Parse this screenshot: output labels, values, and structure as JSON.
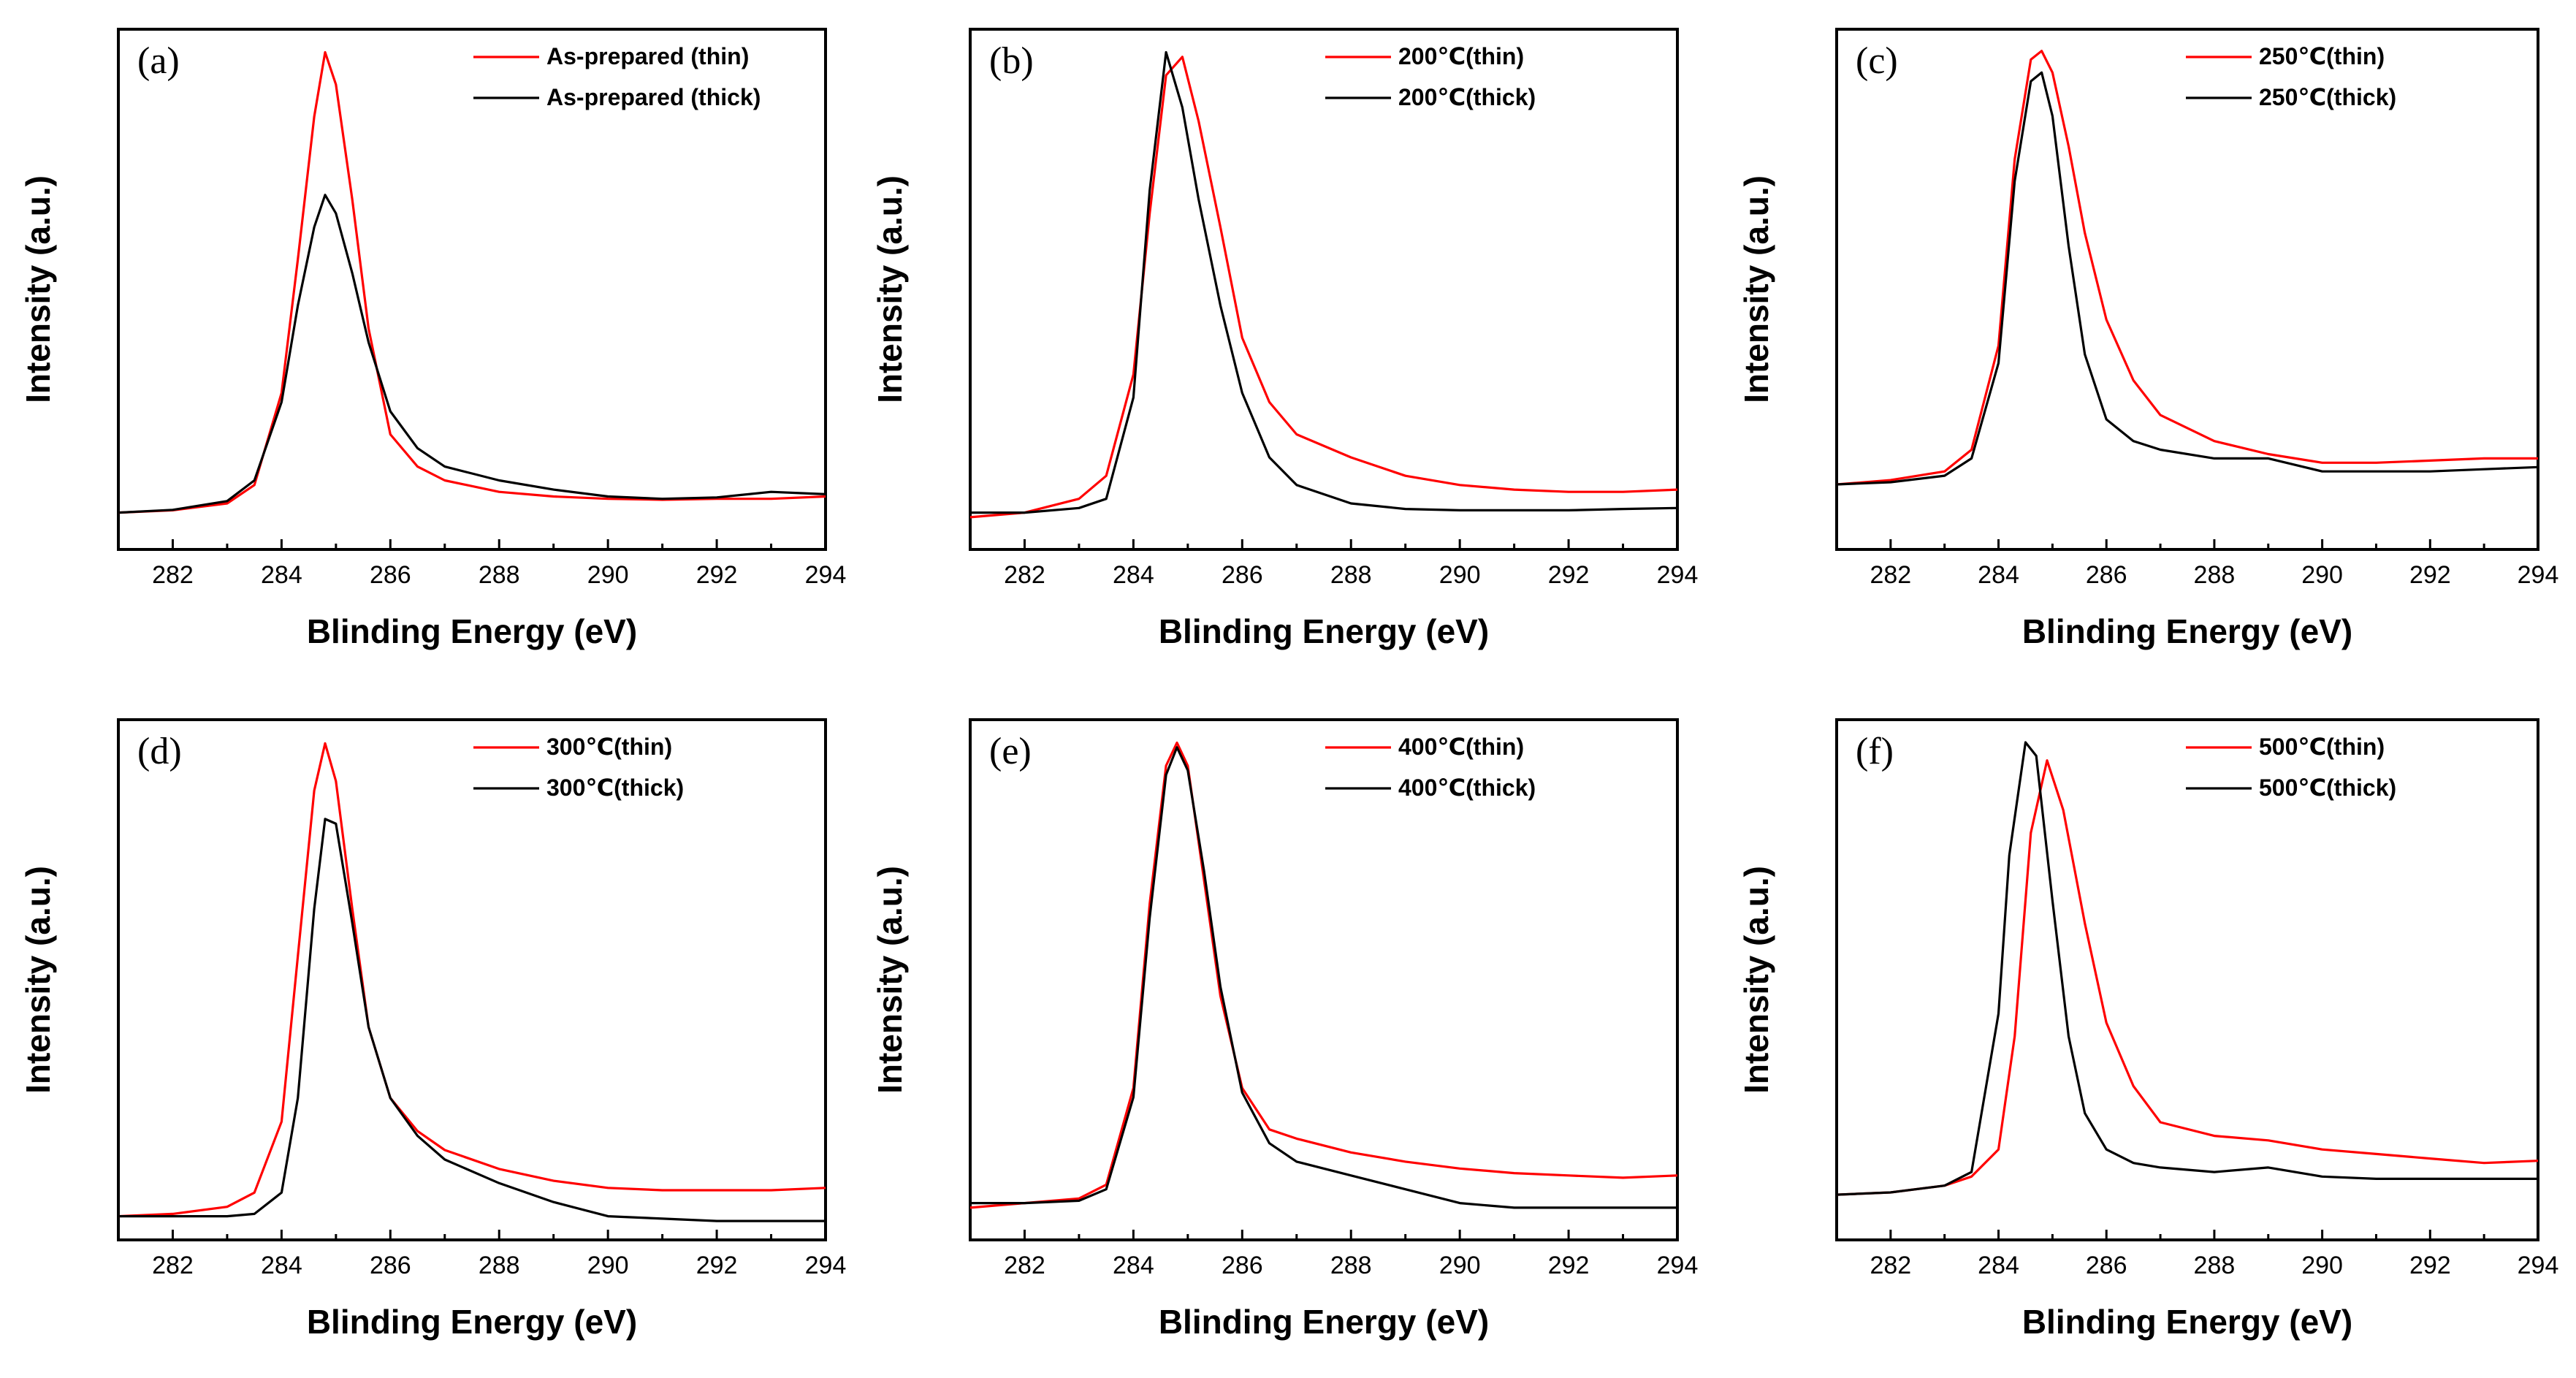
{
  "figure": {
    "panels_count": 6,
    "series_colors": {
      "thin": "#ff0000",
      "thick": "#000000"
    }
  },
  "chart_data": [
    {
      "type": "line",
      "panel_label": "(a)",
      "xlabel": "Blinding Energy (eV)",
      "ylabel": "Intensity (a.u.)",
      "xlim": [
        281,
        294
      ],
      "ylim": [
        -0.08,
        1.05
      ],
      "x_ticks": [
        "282",
        "284",
        "286",
        "288",
        "290",
        "292",
        "294"
      ],
      "legend_position": "top-right",
      "series": [
        {
          "name": "As-prepared (thin)",
          "color": "#ff0000",
          "x": [
            281,
            282,
            283,
            283.5,
            284,
            284.3,
            284.6,
            284.8,
            285,
            285.3,
            285.6,
            286,
            286.5,
            287,
            288,
            289,
            290,
            291,
            292,
            293,
            294
          ],
          "y": [
            0.0,
            0.005,
            0.02,
            0.06,
            0.26,
            0.55,
            0.86,
            1.0,
            0.93,
            0.68,
            0.4,
            0.17,
            0.1,
            0.07,
            0.045,
            0.035,
            0.03,
            0.028,
            0.03,
            0.03,
            0.035
          ]
        },
        {
          "name": "As-prepared (thick)",
          "color": "#000000",
          "x": [
            281,
            282,
            283,
            283.5,
            284,
            284.3,
            284.6,
            284.8,
            285,
            285.3,
            285.6,
            286,
            286.5,
            287,
            287.5,
            288,
            289,
            290,
            291,
            292,
            293,
            294
          ],
          "y": [
            0.0,
            0.006,
            0.025,
            0.07,
            0.24,
            0.45,
            0.62,
            0.69,
            0.65,
            0.52,
            0.37,
            0.22,
            0.14,
            0.1,
            0.085,
            0.07,
            0.05,
            0.035,
            0.03,
            0.033,
            0.045,
            0.04
          ]
        }
      ]
    },
    {
      "type": "line",
      "panel_label": "(b)",
      "xlabel": "Blinding Energy (eV)",
      "ylabel": "Intensity (a.u.)",
      "xlim": [
        281,
        294
      ],
      "ylim": [
        -0.08,
        1.05
      ],
      "x_ticks": [
        "282",
        "284",
        "286",
        "288",
        "290",
        "292",
        "294"
      ],
      "legend_position": "top-right",
      "series": [
        {
          "name": "200℃(thin)",
          "color": "#ff0000",
          "x": [
            281,
            282,
            283,
            283.5,
            284,
            284.3,
            284.6,
            284.9,
            285.2,
            285.6,
            286,
            286.5,
            287,
            288,
            289,
            290,
            291,
            292,
            293,
            294
          ],
          "y": [
            -0.01,
            0.0,
            0.03,
            0.08,
            0.3,
            0.65,
            0.95,
            0.99,
            0.85,
            0.62,
            0.38,
            0.24,
            0.17,
            0.12,
            0.08,
            0.06,
            0.05,
            0.045,
            0.045,
            0.05
          ]
        },
        {
          "name": "200℃(thick)",
          "color": "#000000",
          "x": [
            281,
            282,
            283,
            283.5,
            284,
            284.3,
            284.6,
            284.9,
            285.2,
            285.6,
            286,
            286.5,
            287,
            288,
            289,
            290,
            291,
            292,
            293,
            294
          ],
          "y": [
            0.0,
            0.0,
            0.01,
            0.03,
            0.25,
            0.7,
            1.0,
            0.88,
            0.68,
            0.45,
            0.26,
            0.12,
            0.06,
            0.02,
            0.008,
            0.005,
            0.005,
            0.005,
            0.008,
            0.01
          ]
        }
      ]
    },
    {
      "type": "line",
      "panel_label": "(c)",
      "xlabel": "Blinding Energy (eV)",
      "ylabel": "Intensity (a.u.)",
      "xlim": [
        281,
        294
      ],
      "ylim": [
        -0.15,
        1.05
      ],
      "x_ticks": [
        "282",
        "284",
        "286",
        "288",
        "290",
        "292",
        "294"
      ],
      "legend_position": "top-right",
      "series": [
        {
          "name": "250℃(thin)",
          "color": "#ff0000",
          "x": [
            281,
            282,
            283,
            283.5,
            284,
            284.3,
            284.6,
            284.8,
            285,
            285.3,
            285.6,
            286,
            286.5,
            287,
            288,
            289,
            290,
            291,
            292,
            293,
            294
          ],
          "y": [
            0.0,
            0.01,
            0.03,
            0.08,
            0.32,
            0.75,
            0.98,
            1.0,
            0.95,
            0.78,
            0.58,
            0.38,
            0.24,
            0.16,
            0.1,
            0.07,
            0.05,
            0.05,
            0.055,
            0.06,
            0.06
          ]
        },
        {
          "name": "250℃(thick)",
          "color": "#000000",
          "x": [
            281,
            282,
            283,
            283.5,
            284,
            284.3,
            284.6,
            284.8,
            285,
            285.3,
            285.6,
            286,
            286.5,
            287,
            288,
            289,
            290,
            291,
            292,
            293,
            294
          ],
          "y": [
            0.0,
            0.005,
            0.02,
            0.06,
            0.28,
            0.7,
            0.93,
            0.95,
            0.85,
            0.55,
            0.3,
            0.15,
            0.1,
            0.08,
            0.06,
            0.06,
            0.03,
            0.03,
            0.03,
            0.035,
            0.04
          ]
        }
      ]
    },
    {
      "type": "line",
      "panel_label": "(d)",
      "xlabel": "Blinding Energy (eV)",
      "ylabel": "Intensity (a.u.)",
      "xlim": [
        281,
        294
      ],
      "ylim": [
        -0.05,
        1.05
      ],
      "x_ticks": [
        "282",
        "284",
        "286",
        "288",
        "290",
        "292",
        "294"
      ],
      "legend_position": "top-right",
      "series": [
        {
          "name": "300℃(thin)",
          "color": "#ff0000",
          "x": [
            281,
            282,
            283,
            283.5,
            284,
            284.3,
            284.6,
            284.8,
            285,
            285.3,
            285.6,
            286,
            286.5,
            287,
            288,
            289,
            290,
            291,
            292,
            293,
            294
          ],
          "y": [
            0.0,
            0.005,
            0.02,
            0.05,
            0.2,
            0.55,
            0.9,
            1.0,
            0.92,
            0.65,
            0.4,
            0.25,
            0.18,
            0.14,
            0.1,
            0.075,
            0.06,
            0.055,
            0.055,
            0.055,
            0.06
          ]
        },
        {
          "name": "300℃(thick)",
          "color": "#000000",
          "x": [
            281,
            282,
            283,
            283.5,
            284,
            284.3,
            284.6,
            284.8,
            285,
            285.3,
            285.6,
            286,
            286.5,
            287,
            288,
            289,
            290,
            291,
            292,
            293,
            294
          ],
          "y": [
            0.0,
            0.0,
            0.0,
            0.005,
            0.05,
            0.25,
            0.65,
            0.84,
            0.83,
            0.62,
            0.4,
            0.25,
            0.17,
            0.12,
            0.07,
            0.03,
            0.0,
            -0.005,
            -0.01,
            -0.01,
            -0.01
          ]
        }
      ]
    },
    {
      "type": "line",
      "panel_label": "(e)",
      "xlabel": "Blinding Energy (eV)",
      "ylabel": "Intensity (a.u.)",
      "xlim": [
        281,
        294
      ],
      "ylim": [
        -0.08,
        1.05
      ],
      "x_ticks": [
        "282",
        "284",
        "286",
        "288",
        "290",
        "292",
        "294"
      ],
      "legend_position": "top-right",
      "series": [
        {
          "name": "400℃(thin)",
          "color": "#ff0000",
          "x": [
            281,
            282,
            283,
            283.5,
            284,
            284.3,
            284.6,
            284.8,
            285,
            285.3,
            285.6,
            286,
            286.5,
            287,
            288,
            289,
            290,
            291,
            292,
            293,
            294
          ],
          "y": [
            -0.01,
            0.0,
            0.01,
            0.04,
            0.25,
            0.65,
            0.95,
            1.0,
            0.95,
            0.7,
            0.45,
            0.25,
            0.16,
            0.14,
            0.11,
            0.09,
            0.075,
            0.065,
            0.06,
            0.055,
            0.06
          ]
        },
        {
          "name": "400℃(thick)",
          "color": "#000000",
          "x": [
            281,
            282,
            283,
            283.5,
            284,
            284.3,
            284.6,
            284.8,
            285,
            285.3,
            285.6,
            286,
            286.5,
            287,
            288,
            289,
            290,
            291,
            292,
            293,
            294
          ],
          "y": [
            0.0,
            0.0,
            0.005,
            0.03,
            0.23,
            0.62,
            0.93,
            0.99,
            0.94,
            0.72,
            0.47,
            0.24,
            0.13,
            0.09,
            0.06,
            0.03,
            0.0,
            -0.01,
            -0.01,
            -0.01,
            -0.01
          ]
        }
      ]
    },
    {
      "type": "line",
      "panel_label": "(f)",
      "xlabel": "Blinding Energy (eV)",
      "ylabel": "Intensity (a.u.)",
      "xlim": [
        281,
        294
      ],
      "ylim": [
        -0.1,
        1.05
      ],
      "x_ticks": [
        "282",
        "284",
        "286",
        "288",
        "290",
        "292",
        "294"
      ],
      "legend_position": "top-right",
      "series": [
        {
          "name": "500℃(thin)",
          "color": "#ff0000",
          "x": [
            281,
            282,
            283,
            283.5,
            284,
            284.3,
            284.6,
            284.9,
            285.2,
            285.6,
            286,
            286.5,
            287,
            288,
            289,
            290,
            291,
            292,
            293,
            294
          ],
          "y": [
            0.0,
            0.005,
            0.02,
            0.04,
            0.1,
            0.35,
            0.8,
            0.96,
            0.85,
            0.6,
            0.38,
            0.24,
            0.16,
            0.13,
            0.12,
            0.1,
            0.09,
            0.08,
            0.07,
            0.075
          ]
        },
        {
          "name": "500℃(thick)",
          "color": "#000000",
          "x": [
            281,
            282,
            283,
            283.5,
            284,
            284.2,
            284.5,
            284.7,
            285,
            285.3,
            285.6,
            286,
            286.5,
            287,
            288,
            289,
            290,
            291,
            292,
            293,
            294
          ],
          "y": [
            0.0,
            0.005,
            0.02,
            0.05,
            0.4,
            0.75,
            1.0,
            0.97,
            0.65,
            0.35,
            0.18,
            0.1,
            0.07,
            0.06,
            0.05,
            0.06,
            0.04,
            0.035,
            0.035,
            0.035,
            0.035
          ]
        }
      ]
    }
  ]
}
